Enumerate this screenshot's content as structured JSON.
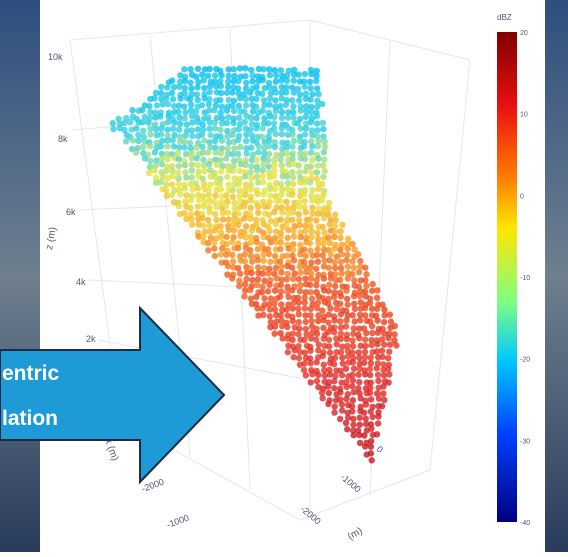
{
  "z_axis": {
    "label": "z (m)",
    "ticks": [
      "10k",
      "8k",
      "6k",
      "4k",
      "2k"
    ]
  },
  "x_axis": {
    "label": "x (m)",
    "ticks": [
      "-2000",
      "-1000"
    ]
  },
  "y_axis": {
    "label": "(m)",
    "ticks": [
      "0",
      "-1000",
      "-2000"
    ]
  },
  "colorbar": {
    "title": "dBZ",
    "ticks": [
      "20",
      "10",
      "0",
      "-10",
      "-20",
      "-30",
      "-40"
    ]
  },
  "arrow": {
    "lines": [
      "entric",
      "lation"
    ]
  }
}
